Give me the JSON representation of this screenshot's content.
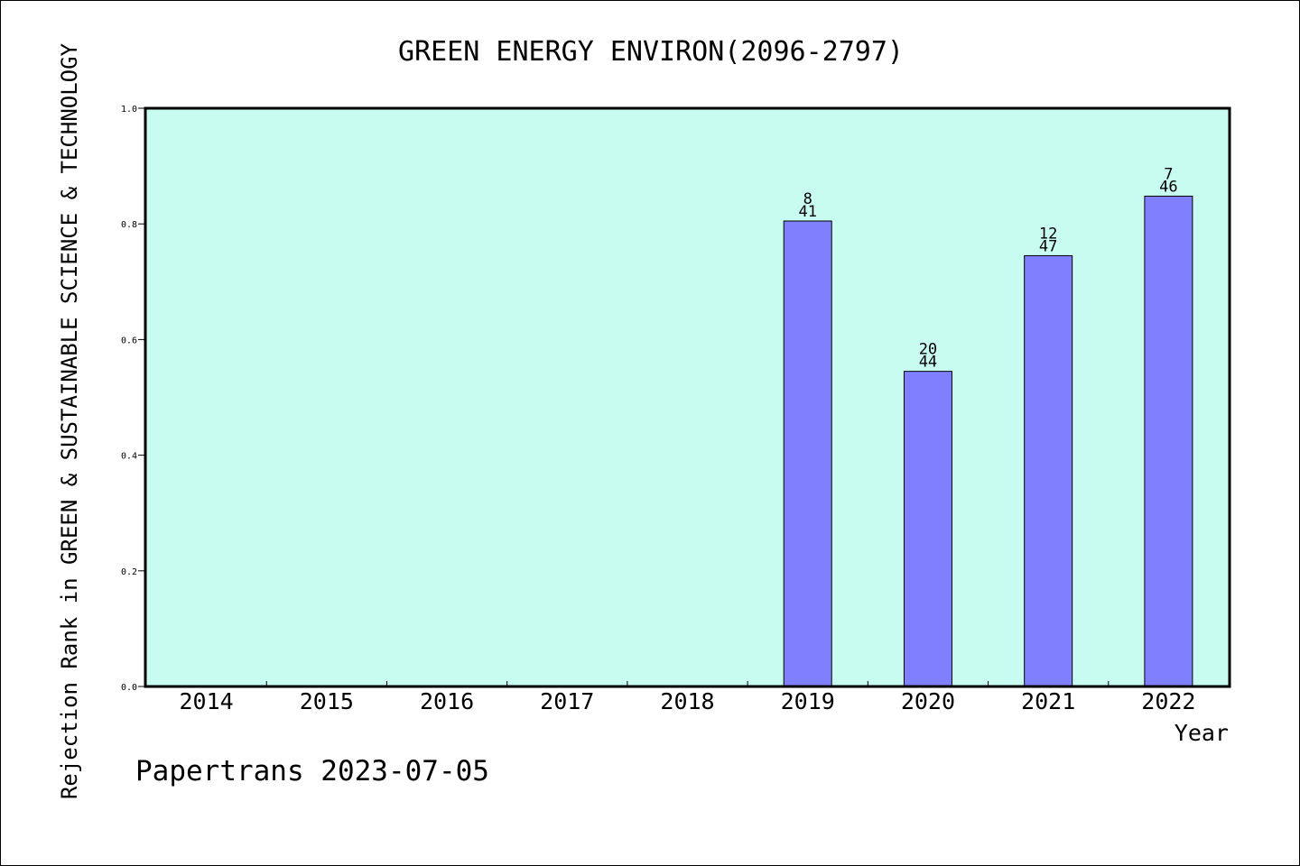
{
  "chart_data": {
    "type": "bar",
    "title": "GREEN ENERGY ENVIRON(2096-2797)",
    "xlabel": "Year",
    "ylabel": "Rejection Rank in GREEN & SUSTAINABLE SCIENCE & TECHNOLOGY",
    "categories": [
      "2014",
      "2015",
      "2016",
      "2017",
      "2018",
      "2019",
      "2020",
      "2021",
      "2022"
    ],
    "values": [
      null,
      null,
      null,
      null,
      null,
      0.805,
      0.545,
      0.745,
      0.848
    ],
    "rank": [
      null,
      null,
      null,
      null,
      null,
      "8",
      "20",
      "12",
      "7"
    ],
    "total": [
      null,
      null,
      null,
      null,
      null,
      "41",
      "44",
      "47",
      "46"
    ],
    "ylim": [
      0,
      1.0
    ],
    "yticks": [
      "0.0",
      "0.2",
      "0.4",
      "0.6",
      "0.8",
      "1.0"
    ],
    "grid": false,
    "colors": {
      "plot_background": "#c8fcf0",
      "bar": "#8080ff",
      "axis": "#000000"
    }
  },
  "footer": "Papertrans 2023-07-05"
}
